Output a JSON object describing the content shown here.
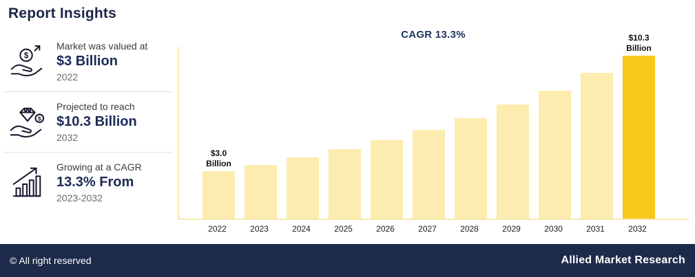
{
  "header": {
    "title": "Report Insights"
  },
  "insights": [
    {
      "icon": "money-growth-hand-icon",
      "line1": "Market was valued at",
      "value": "$3 Billion",
      "line3": "2022"
    },
    {
      "icon": "diamond-value-hand-icon",
      "line1": "Projected to reach",
      "value": "$10.3 Billion",
      "line3": "2032"
    },
    {
      "icon": "cagr-growth-chart-icon",
      "line1": "Growing at a CAGR",
      "value": "13.3% From",
      "line3": "2023-2032"
    }
  ],
  "chart_data": {
    "type": "bar",
    "title": "CAGR 13.3%",
    "categories": [
      "2022",
      "2023",
      "2024",
      "2025",
      "2026",
      "2027",
      "2028",
      "2029",
      "2030",
      "2031",
      "2032"
    ],
    "values": [
      3.0,
      3.4,
      3.85,
      4.4,
      4.95,
      5.6,
      6.35,
      7.2,
      8.1,
      9.2,
      10.3
    ],
    "first_bar_label": "$3.0\nBillion",
    "last_bar_label": "$10.3\nBillion",
    "bar_color": "#FCECAF",
    "highlight_color": "#F7C81C",
    "axis_color": "#F6E7AE",
    "xlabel": "",
    "ylabel": "",
    "ylim": [
      0,
      11
    ],
    "legend": "none",
    "grid": "off"
  },
  "footer": {
    "left": "© All right reserved",
    "right": "Allied Market Research"
  }
}
